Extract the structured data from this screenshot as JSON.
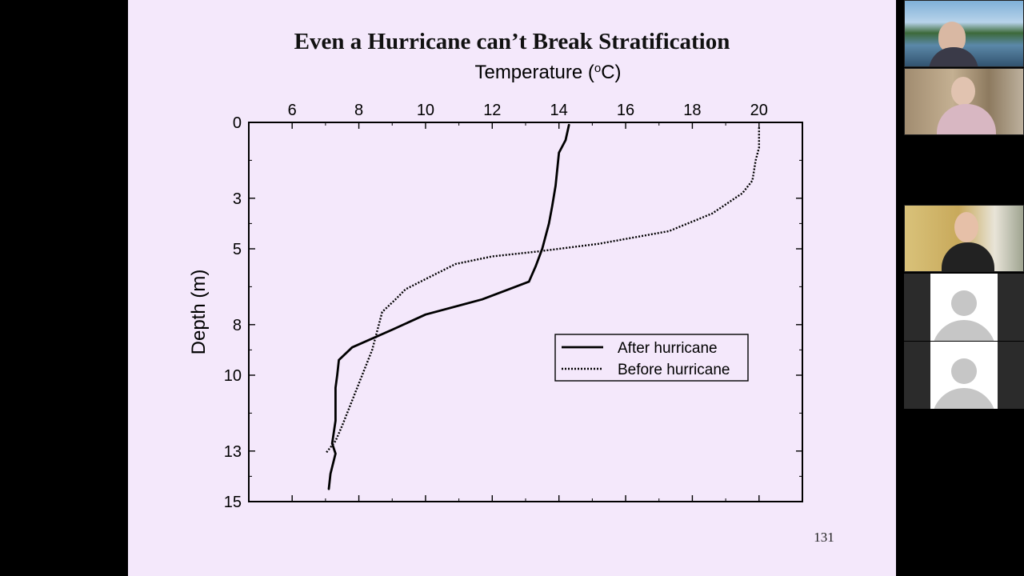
{
  "slide": {
    "title": "Even a Hurricane can’t Break Stratification",
    "page_number": "131"
  },
  "chart_data": {
    "type": "line",
    "title": "Even a Hurricane can’t Break Stratification",
    "xlabel": "Temperature (°C)",
    "xlabel_parts": [
      "Temperature (",
      "o",
      "C)"
    ],
    "ylabel": "Depth (m)",
    "x_axis_position": "top",
    "y_axis_inverted": true,
    "xlim": [
      4.7,
      21.3
    ],
    "ylim": [
      0,
      15
    ],
    "xticks": [
      6,
      8,
      10,
      12,
      14,
      16,
      18,
      20
    ],
    "yticks": [
      0,
      3,
      5,
      8,
      10,
      13,
      15
    ],
    "grid": false,
    "legend_position": "right-middle",
    "series": [
      {
        "name": "After hurricane",
        "style": "solid",
        "points": [
          [
            14.3,
            0.1
          ],
          [
            14.2,
            0.7
          ],
          [
            14.0,
            1.2
          ],
          [
            13.9,
            2.5
          ],
          [
            13.8,
            3.3
          ],
          [
            13.7,
            4.0
          ],
          [
            13.5,
            5.0
          ],
          [
            13.3,
            5.7
          ],
          [
            13.1,
            6.3
          ],
          [
            11.7,
            7.0
          ],
          [
            10.0,
            7.6
          ],
          [
            9.0,
            8.2
          ],
          [
            7.8,
            8.9
          ],
          [
            7.4,
            9.4
          ],
          [
            7.35,
            10.0
          ],
          [
            7.3,
            10.5
          ],
          [
            7.3,
            11.8
          ],
          [
            7.2,
            12.7
          ],
          [
            7.3,
            13.1
          ],
          [
            7.15,
            13.9
          ],
          [
            7.1,
            14.5
          ]
        ]
      },
      {
        "name": "Before hurricane",
        "style": "dotted",
        "points": [
          [
            20.0,
            0.2
          ],
          [
            20.0,
            1.0
          ],
          [
            19.9,
            1.5
          ],
          [
            19.8,
            2.3
          ],
          [
            19.5,
            2.8
          ],
          [
            18.6,
            3.6
          ],
          [
            17.3,
            4.3
          ],
          [
            15.2,
            4.8
          ],
          [
            13.4,
            5.1
          ],
          [
            12.0,
            5.3
          ],
          [
            10.9,
            5.6
          ],
          [
            10.0,
            6.2
          ],
          [
            9.4,
            6.6
          ],
          [
            9.1,
            7.0
          ],
          [
            8.7,
            7.5
          ],
          [
            8.6,
            8.0
          ],
          [
            8.4,
            9.0
          ],
          [
            8.1,
            10.0
          ],
          [
            7.8,
            11.0
          ],
          [
            7.5,
            12.0
          ],
          [
            7.3,
            12.6
          ],
          [
            7.0,
            13.1
          ]
        ]
      }
    ]
  },
  "participants": [
    {
      "type": "video",
      "scene": "outdoor-lake"
    },
    {
      "type": "video",
      "scene": "indoor-desk"
    },
    {
      "type": "video",
      "scene": "indoor-curtains"
    },
    {
      "type": "avatar"
    },
    {
      "type": "avatar"
    }
  ]
}
